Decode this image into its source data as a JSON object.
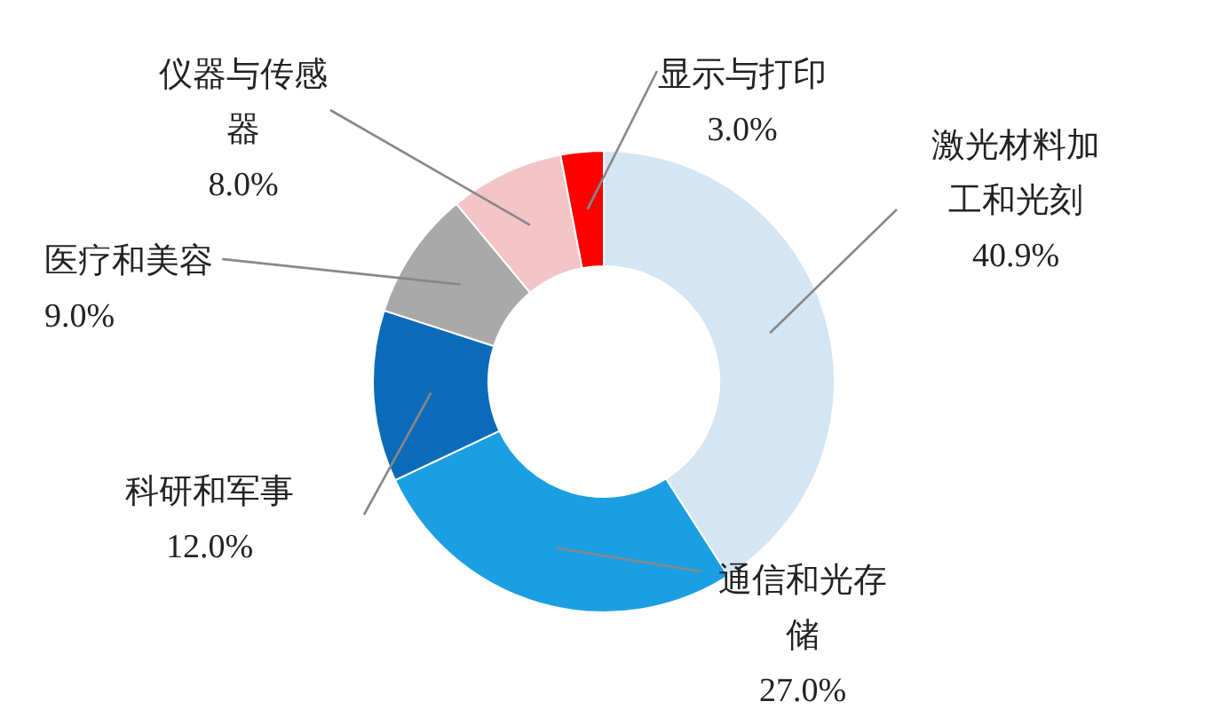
{
  "chart_data": {
    "type": "donut",
    "categories": [
      "激光材料加工和光刻",
      "通信和光存储",
      "科研和军事",
      "医疗和美容",
      "仪器与传感器",
      "显示与打印"
    ],
    "values": [
      40.9,
      27.0,
      12.0,
      9.0,
      8.0,
      3.0
    ],
    "value_labels": [
      "40.9%",
      "27.0%",
      "12.0%",
      "9.0%",
      "8.0%",
      "3.0%"
    ],
    "colors": [
      "#d4e5f3",
      "#1b9fe2",
      "#0c6bb8",
      "#a9a9a9",
      "#f3c5c7",
      "#ff0000"
    ],
    "legend": false
  }
}
